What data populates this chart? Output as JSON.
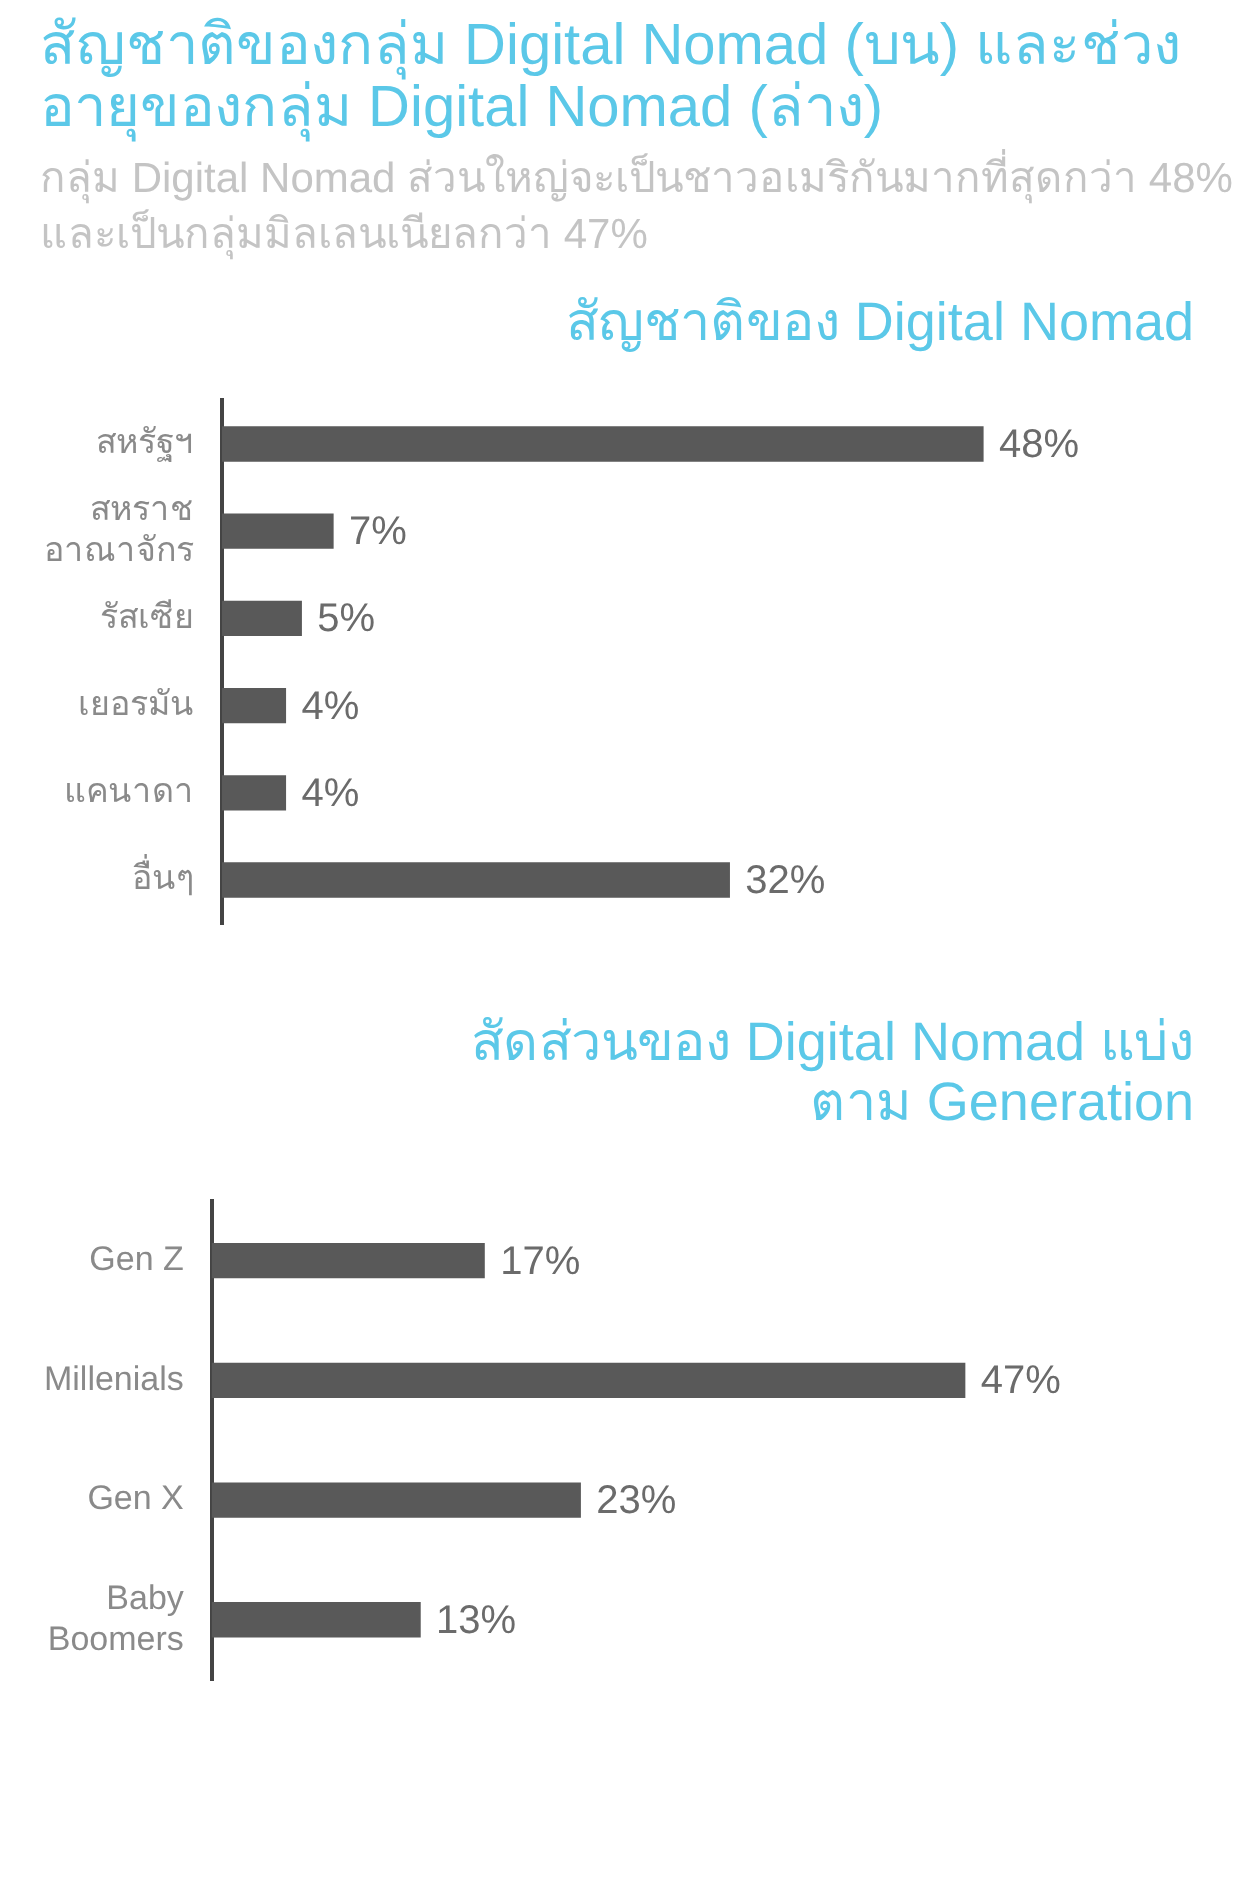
{
  "chart_data": [
    {
      "type": "bar",
      "orientation": "horizontal",
      "title": "สัญชาติของ Digital Nomad",
      "annotations": [
        "สัญชาติของกลุ่ม Digital Nomad (บน) และช่วงอายุของกลุ่ม Digital Nomad (ล่าง)",
        "กลุ่ม Digital Nomad ส่วนใหญ่จะเป็นชาวอเมริกันมากที่สุดกว่า 48% และเป็นกลุ่มมิลเลนเนียลกว่า 47%"
      ],
      "categories": [
        "สหรัฐฯ",
        "สหราช อาณาจักร",
        "รัสเซีย",
        "เยอรมัน",
        "แคนาดา",
        "อื่นๆ"
      ],
      "values": [
        48,
        7,
        5,
        4,
        4,
        32
      ],
      "value_labels": [
        "48%",
        "7%",
        "5%",
        "4%",
        "4%",
        "32%"
      ],
      "color": "#595959"
    },
    {
      "type": "bar",
      "orientation": "horizontal",
      "title": "สัดส่วนของ Digital Nomad แบ่งตาม Generation",
      "categories": [
        "Gen Z",
        "Millenials",
        "Gen X",
        "Baby Boomers"
      ],
      "values": [
        17,
        47,
        23,
        13
      ],
      "value_labels": [
        "17%",
        "47%",
        "23%",
        "13%"
      ],
      "color": "#595959"
    }
  ]
}
